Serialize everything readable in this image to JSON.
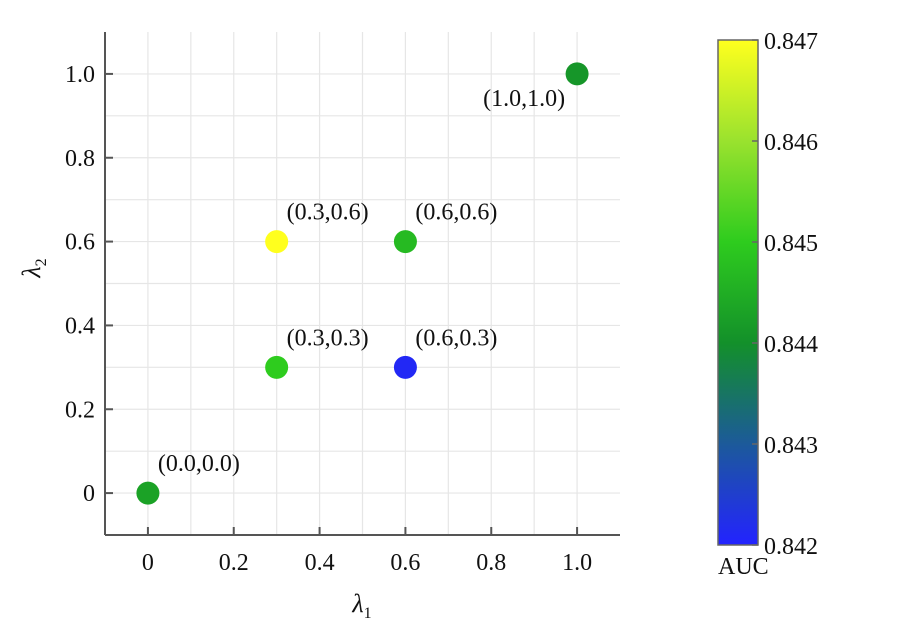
{
  "chart_data": {
    "type": "scatter",
    "xlabel": "λ",
    "xlabel_sub": "1",
    "ylabel": "λ",
    "ylabel_sub": "2",
    "xlim": [
      -0.1,
      1.1
    ],
    "ylim": [
      -0.1,
      1.1
    ],
    "xticks": [
      0,
      0.2,
      0.4,
      0.6,
      0.8,
      1.0
    ],
    "xtick_labels": [
      "0",
      "0.2",
      "0.4",
      "0.6",
      "0.8",
      "1.0"
    ],
    "yticks": [
      0,
      0.2,
      0.4,
      0.6,
      0.8,
      1.0
    ],
    "ytick_labels": [
      "0",
      "0.2",
      "0.4",
      "0.6",
      "0.8",
      "1.0"
    ],
    "grid": true,
    "points": [
      {
        "x": 0.0,
        "y": 0.0,
        "value": 0.8443,
        "label": "(0.0,0.0)",
        "label_pos": "upper-right"
      },
      {
        "x": 0.3,
        "y": 0.3,
        "value": 0.845,
        "label": "(0.3,0.3)",
        "label_pos": "upper-right"
      },
      {
        "x": 0.6,
        "y": 0.3,
        "value": 0.8421,
        "label": "(0.6,0.3)",
        "label_pos": "upper-right"
      },
      {
        "x": 0.3,
        "y": 0.6,
        "value": 0.847,
        "label": "(0.3,0.6)",
        "label_pos": "upper-right"
      },
      {
        "x": 0.6,
        "y": 0.6,
        "value": 0.8447,
        "label": "(0.6,0.6)",
        "label_pos": "upper-right"
      },
      {
        "x": 1.0,
        "y": 1.0,
        "value": 0.8441,
        "label": "(1.0,1.0)",
        "label_pos": "lower-left"
      }
    ],
    "colorbar": {
      "label": "AUC",
      "min": 0.842,
      "max": 0.847,
      "ticks": [
        0.842,
        0.843,
        0.844,
        0.845,
        0.846,
        0.847
      ],
      "tick_labels": [
        "0.842",
        "0.843",
        "0.844",
        "0.845",
        "0.846",
        "0.847"
      ],
      "stops": [
        {
          "value": 0.842,
          "color": "#2323ff"
        },
        {
          "value": 0.843,
          "color": "#1c5a9a"
        },
        {
          "value": 0.844,
          "color": "#13902a"
        },
        {
          "value": 0.845,
          "color": "#2ecc1e"
        },
        {
          "value": 0.846,
          "color": "#9ae22e"
        },
        {
          "value": 0.847,
          "color": "#ffff1e"
        }
      ]
    }
  }
}
